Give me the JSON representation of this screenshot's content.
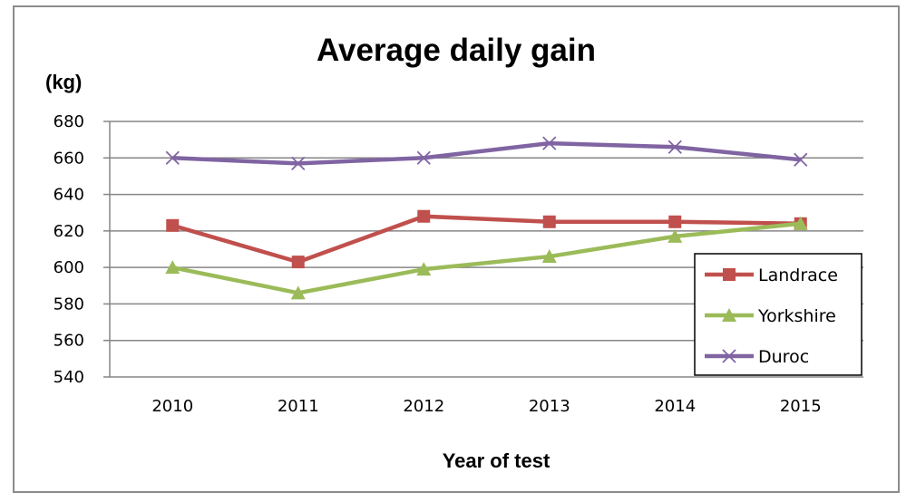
{
  "chart_data": {
    "type": "line",
    "title": "Average daily gain",
    "ylabel": "(kg)",
    "xlabel": "Year of test",
    "categories": [
      "2010",
      "2011",
      "2012",
      "2013",
      "2014",
      "2015"
    ],
    "ylim": [
      540,
      680
    ],
    "yticks": [
      540,
      560,
      580,
      600,
      620,
      640,
      660,
      680
    ],
    "grid": true,
    "legend_position": "right",
    "series": [
      {
        "name": "Landrace",
        "values": [
          623,
          603,
          628,
          625,
          625,
          624
        ],
        "color": "#c0504d",
        "marker": "square"
      },
      {
        "name": "Yorkshire",
        "values": [
          600,
          586,
          599,
          606,
          617,
          624
        ],
        "color": "#9bbb59",
        "marker": "triangle"
      },
      {
        "name": "Duroc",
        "values": [
          660,
          657,
          660,
          668,
          666,
          659
        ],
        "color": "#8064a2",
        "marker": "x"
      }
    ]
  }
}
